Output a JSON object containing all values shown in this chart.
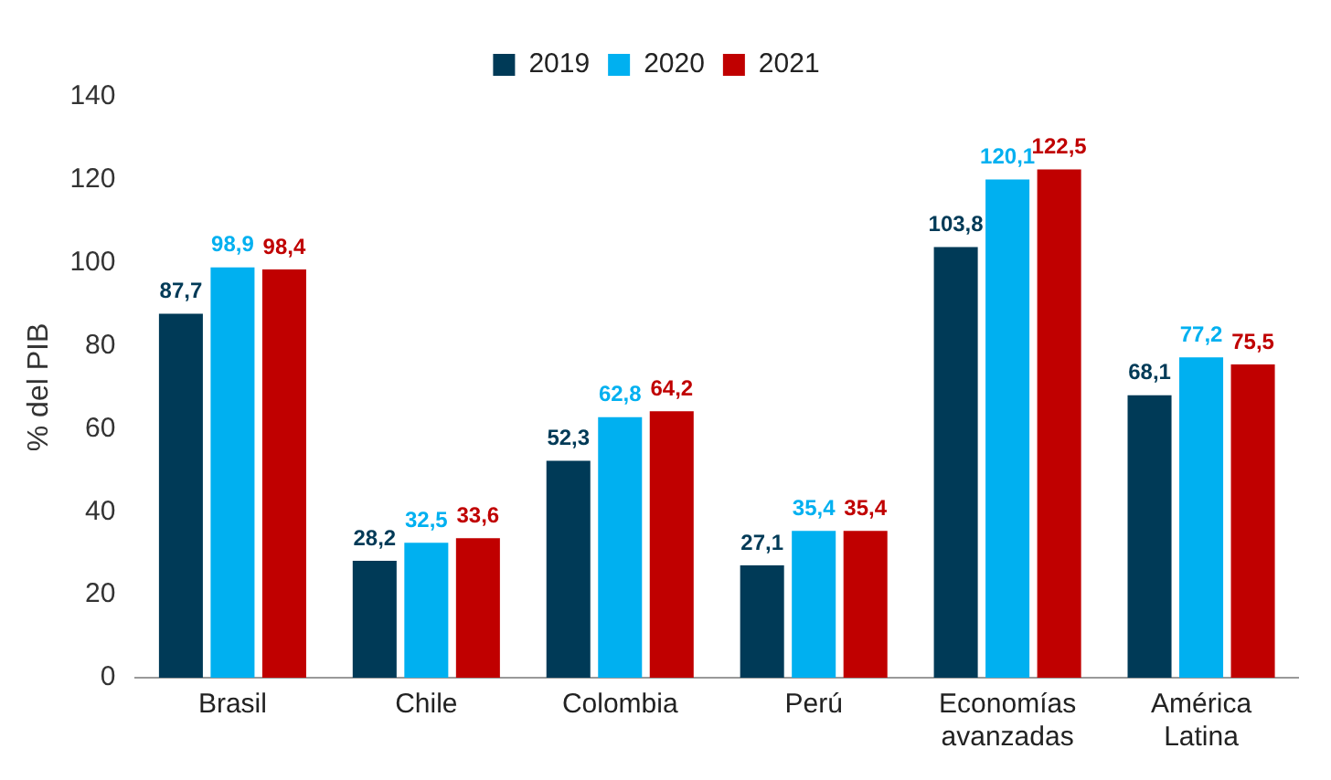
{
  "chart_data": {
    "type": "bar",
    "ylabel": "% del PIB",
    "categories": [
      "Brasil",
      "Chile",
      "Colombia",
      "Perú",
      "Economías avanzadas",
      "América Latina"
    ],
    "series": [
      {
        "name": "2019",
        "color": "#003a57",
        "values": [
          87.7,
          28.2,
          52.3,
          27.1,
          103.8,
          68.1
        ],
        "value_labels": [
          "87,7",
          "28,2",
          "52,3",
          "27,1",
          "103,8",
          "68,1"
        ]
      },
      {
        "name": "2020",
        "color": "#00b0f0",
        "values": [
          98.9,
          32.5,
          62.8,
          35.4,
          120.1,
          77.2
        ],
        "value_labels": [
          "98,9",
          "32,5",
          "62,8",
          "35,4",
          "120,1",
          "77,2"
        ]
      },
      {
        "name": "2021",
        "color": "#c00000",
        "values": [
          98.4,
          33.6,
          64.2,
          35.4,
          122.5,
          75.5
        ],
        "value_labels": [
          "98,4",
          "33,6",
          "64,2",
          "35,4",
          "122,5",
          "75,5"
        ]
      }
    ],
    "ylim": [
      0,
      140
    ],
    "yticks": [
      0,
      20,
      40,
      60,
      80,
      100,
      120,
      140
    ],
    "grid": false,
    "legend": "top"
  }
}
